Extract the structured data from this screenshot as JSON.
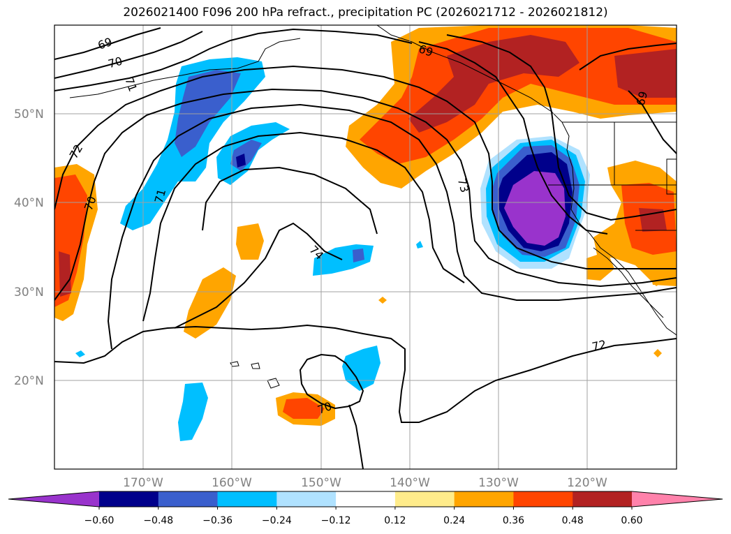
{
  "title": "2026021400 F096 200 hPa refract., precipitation PC (2026021712 - 2026021812)",
  "map": {
    "lat_labels": [
      "50°N",
      "40°N",
      "30°N",
      "20°N"
    ],
    "lon_labels": [
      "170°W",
      "160°W",
      "150°W",
      "140°W",
      "130°W",
      "120°W"
    ],
    "contour_labels": [
      "69",
      "70",
      "71",
      "72",
      "70",
      "71",
      "69",
      "73",
      "74",
      "69",
      "70",
      "72"
    ]
  },
  "colorbar": {
    "colors": [
      "#9933cc",
      "#00008b",
      "#3a5fcd",
      "#00bfff",
      "#b0e2ff",
      "#ffffff",
      "#ffec8b",
      "#ffa500",
      "#ff4500",
      "#b22222",
      "#ff82ab"
    ],
    "labels": [
      "−0.60",
      "−0.48",
      "−0.36",
      "−0.24",
      "−0.12",
      "0.12",
      "0.24",
      "0.36",
      "0.48",
      "0.60"
    ]
  }
}
